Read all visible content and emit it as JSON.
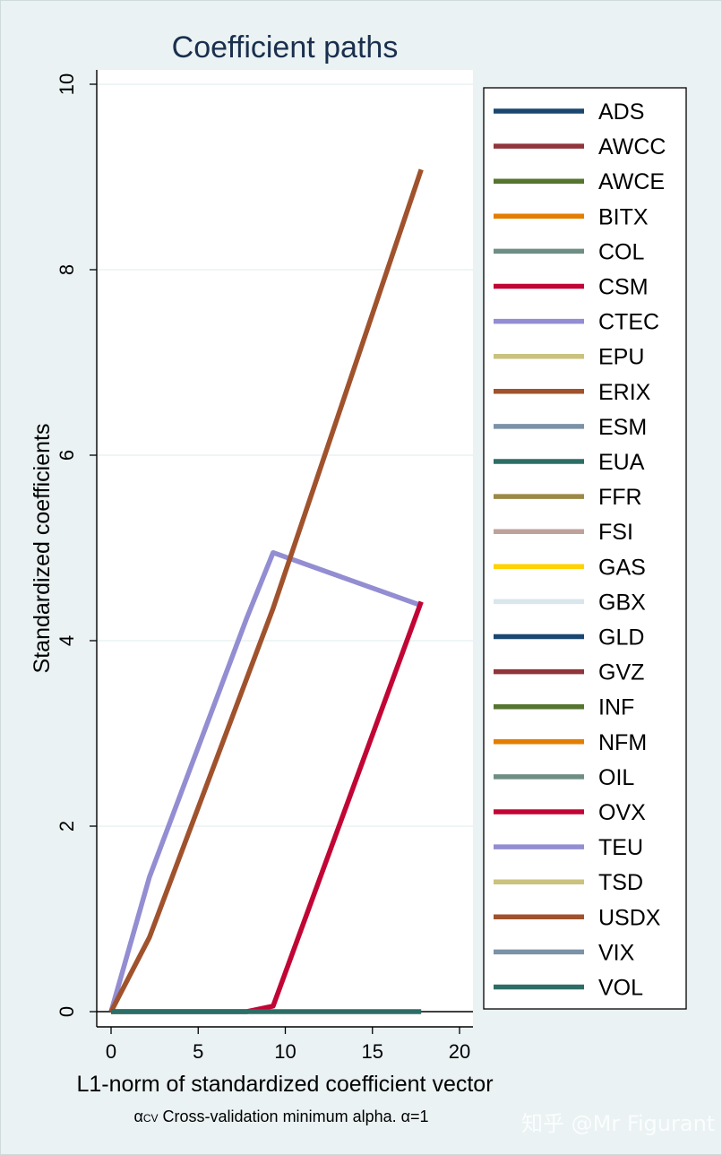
{
  "chart_data": {
    "type": "line",
    "title": "Coefficient paths",
    "xlabel": "L1-norm of standardized coefficient vector",
    "ylabel": "Standardized coefficients",
    "note": {
      "alpha_symbol": "α",
      "alpha_sub": "CV",
      "text": " Cross-validation minimum alpha.  α=1"
    },
    "xlim": [
      -1,
      21
    ],
    "ylim": [
      -0.2,
      10.2
    ],
    "xticks": [
      0,
      5,
      10,
      15,
      20
    ],
    "yticks": [
      0,
      2,
      4,
      6,
      8,
      10
    ],
    "grid": true,
    "legend_position": "right",
    "series": [
      {
        "name": "ADS",
        "color": "#1a476f",
        "x": [],
        "y": []
      },
      {
        "name": "AWCC",
        "color": "#90353b",
        "x": [],
        "y": []
      },
      {
        "name": "AWCE",
        "color": "#55752f",
        "x": [],
        "y": []
      },
      {
        "name": "BITX",
        "color": "#e37e00",
        "x": [],
        "y": []
      },
      {
        "name": "COL",
        "color": "#6e8e84",
        "x": [],
        "y": []
      },
      {
        "name": "CSM",
        "color": "#c10534",
        "x": [],
        "y": []
      },
      {
        "name": "CTEC",
        "color": "#938dd2",
        "x": [
          0,
          2.2,
          7.8,
          9.3,
          17.8
        ],
        "y": [
          0,
          1.45,
          4.25,
          4.95,
          4.38
        ]
      },
      {
        "name": "EPU",
        "color": "#cac27e",
        "x": [],
        "y": []
      },
      {
        "name": "ERIX",
        "color": "#a0522d",
        "x": [
          0,
          2.2,
          9.3,
          17.8
        ],
        "y": [
          0,
          0.8,
          4.35,
          9.08
        ]
      },
      {
        "name": "ESM",
        "color": "#7b92a8",
        "x": [],
        "y": []
      },
      {
        "name": "EUA",
        "color": "#2d6d66",
        "x": [],
        "y": []
      },
      {
        "name": "FFR",
        "color": "#9c8847",
        "x": [],
        "y": []
      },
      {
        "name": "FSI",
        "color": "#bfa19c",
        "x": [],
        "y": []
      },
      {
        "name": "GAS",
        "color": "#ffd200",
        "x": [],
        "y": []
      },
      {
        "name": "GBX",
        "color": "#d9e6eb",
        "x": [],
        "y": []
      },
      {
        "name": "GLD",
        "color": "#1a476f",
        "x": [],
        "y": []
      },
      {
        "name": "GVZ",
        "color": "#90353b",
        "x": [],
        "y": []
      },
      {
        "name": "INF",
        "color": "#55752f",
        "x": [],
        "y": []
      },
      {
        "name": "NFM",
        "color": "#e37e00",
        "x": [],
        "y": []
      },
      {
        "name": "OIL",
        "color": "#6e8e84",
        "x": [],
        "y": []
      },
      {
        "name": "OVX",
        "color": "#c10534",
        "x": [
          0,
          7.8,
          9.3,
          17.8
        ],
        "y": [
          0,
          0,
          0.06,
          4.42
        ]
      },
      {
        "name": "TEU",
        "color": "#938dd2",
        "x": [],
        "y": []
      },
      {
        "name": "TSD",
        "color": "#cac27e",
        "x": [],
        "y": []
      },
      {
        "name": "USDX",
        "color": "#a0522d",
        "x": [],
        "y": []
      },
      {
        "name": "VIX",
        "color": "#7b92a8",
        "x": [],
        "y": []
      },
      {
        "name": "VOL",
        "color": "#2d6d66",
        "x": [
          0,
          17.8
        ],
        "y": [
          0,
          0
        ]
      }
    ]
  },
  "watermark": "知乎 @Mr Figurant",
  "colors": {
    "background": "#eaf2f3",
    "plot_background": "#ffffff",
    "grid": "#eaf2f3",
    "title": "#1a2f4e"
  }
}
